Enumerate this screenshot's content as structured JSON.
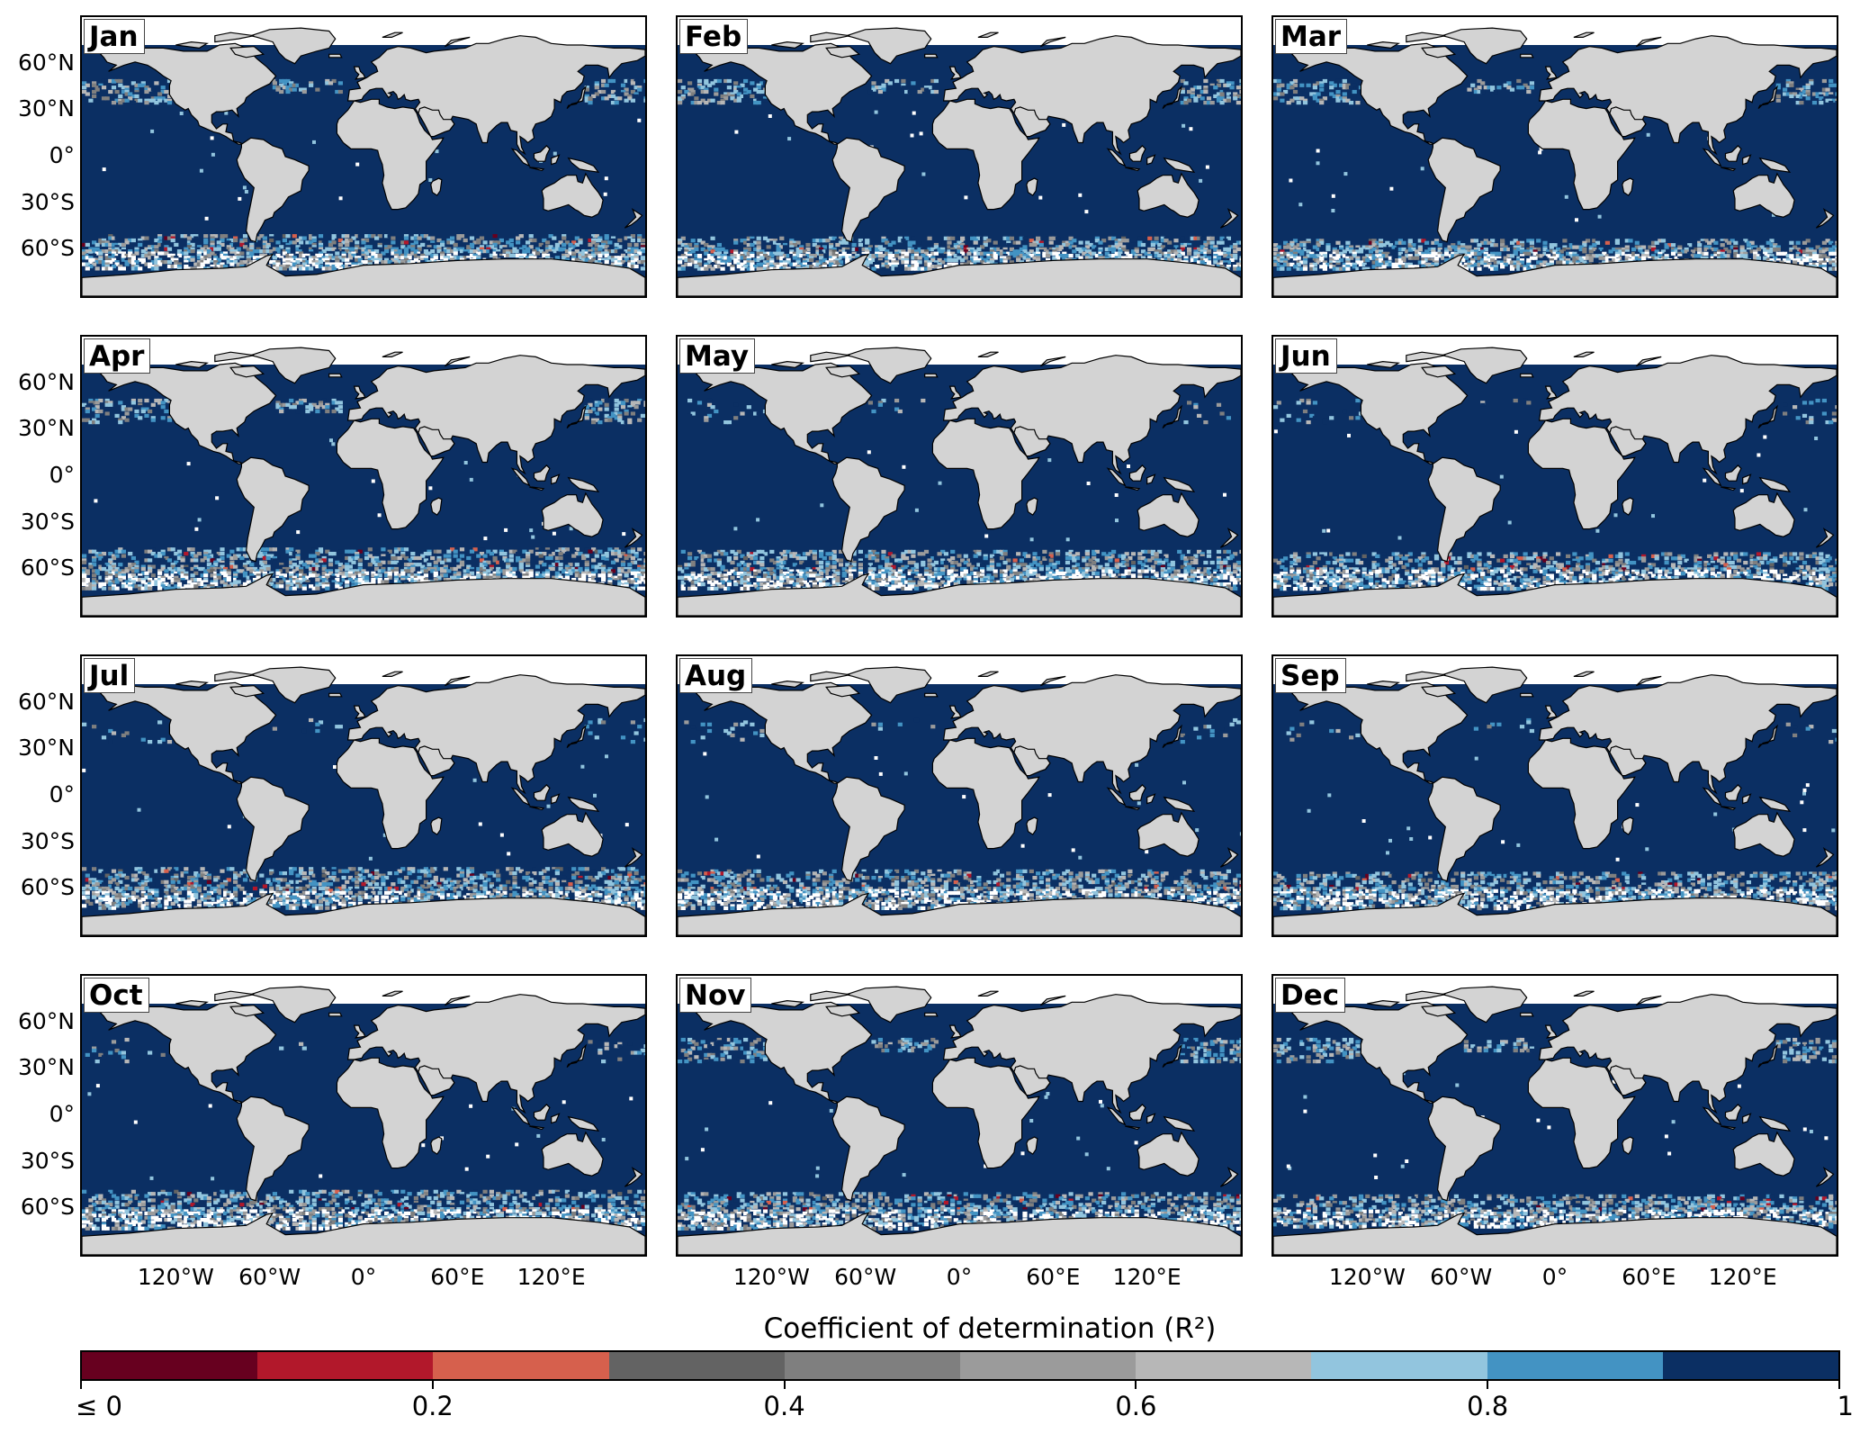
{
  "panels": [
    {
      "label": "Jan"
    },
    {
      "label": "Feb"
    },
    {
      "label": "Mar"
    },
    {
      "label": "Apr"
    },
    {
      "label": "May"
    },
    {
      "label": "Jun"
    },
    {
      "label": "Jul"
    },
    {
      "label": "Aug"
    },
    {
      "label": "Sep"
    },
    {
      "label": "Oct"
    },
    {
      "label": "Nov"
    },
    {
      "label": "Dec"
    }
  ],
  "lat_ticks": [
    "60°N",
    "30°N",
    "0°",
    "30°S",
    "60°S"
  ],
  "lon_ticks": [
    "120°W",
    "60°W",
    "0°",
    "60°E",
    "120°E"
  ],
  "colorbar": {
    "title": "Coefficient of determination (R²)",
    "tick_labels": [
      "≤ 0",
      "0.2",
      "0.4",
      "0.6",
      "0.8",
      "1"
    ],
    "range": [
      0,
      1
    ],
    "colors": [
      "#67001f",
      "#b2182b",
      "#d6604d",
      "#636363",
      "#7f7f7f",
      "#9b9b9b",
      "#b7b7b7",
      "#92c5de",
      "#4393c3",
      "#0b2f63"
    ]
  },
  "map_colors": {
    "ocean": "#0b2f63",
    "land": "#d3d3d3",
    "no_data": "#ffffff"
  }
}
